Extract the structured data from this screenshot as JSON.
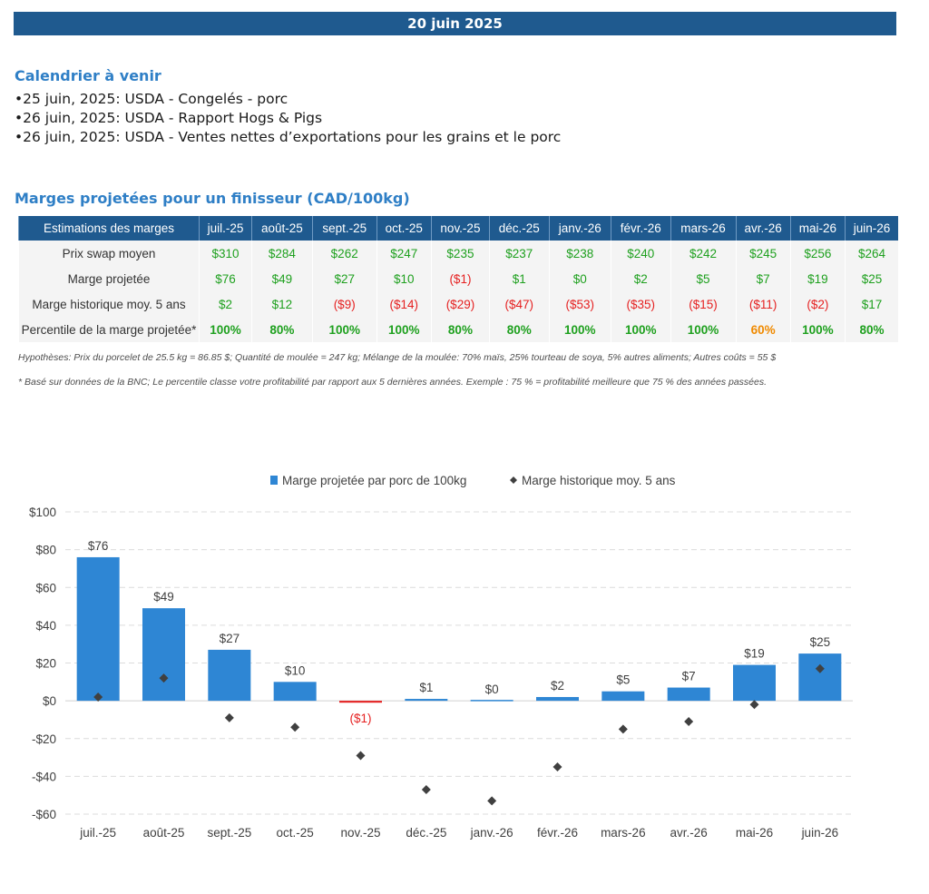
{
  "header": {
    "date": "20 juin 2025"
  },
  "calendar": {
    "title": "Calendrier à venir",
    "events": [
      "25 juin, 2025: USDA - Congelés - porc",
      "26 juin, 2025: USDA - Rapport Hogs & Pigs",
      "26 juin, 2025: USDA - Ventes nettes d’exportations pour les grains et le porc"
    ]
  },
  "margins": {
    "title": "Marges projetées pour un finisseur (CAD/100kg)",
    "corner_label": "Estimations des marges",
    "months": [
      "juil.-25",
      "août-25",
      "sept.-25",
      "oct.-25",
      "nov.-25",
      "déc.-25",
      "janv.-26",
      "févr.-26",
      "mars-26",
      "avr.-26",
      "mai-26",
      "juin-26"
    ],
    "rows": [
      {
        "label": "Prix swap moyen",
        "cells": [
          {
            "text": "$310",
            "tone": "pos"
          },
          {
            "text": "$284",
            "tone": "pos"
          },
          {
            "text": "$262",
            "tone": "pos"
          },
          {
            "text": "$247",
            "tone": "pos"
          },
          {
            "text": "$235",
            "tone": "pos"
          },
          {
            "text": "$237",
            "tone": "pos"
          },
          {
            "text": "$238",
            "tone": "pos"
          },
          {
            "text": "$240",
            "tone": "pos"
          },
          {
            "text": "$242",
            "tone": "pos"
          },
          {
            "text": "$245",
            "tone": "pos"
          },
          {
            "text": "$256",
            "tone": "pos"
          },
          {
            "text": "$264",
            "tone": "pos"
          }
        ]
      },
      {
        "label": "Marge projetée",
        "cells": [
          {
            "text": "$76",
            "tone": "pos"
          },
          {
            "text": "$49",
            "tone": "pos"
          },
          {
            "text": "$27",
            "tone": "pos"
          },
          {
            "text": "$10",
            "tone": "pos"
          },
          {
            "text": "($1)",
            "tone": "neg"
          },
          {
            "text": "$1",
            "tone": "pos"
          },
          {
            "text": "$0",
            "tone": "pos"
          },
          {
            "text": "$2",
            "tone": "pos"
          },
          {
            "text": "$5",
            "tone": "pos"
          },
          {
            "text": "$7",
            "tone": "pos"
          },
          {
            "text": "$19",
            "tone": "pos"
          },
          {
            "text": "$25",
            "tone": "pos"
          }
        ]
      },
      {
        "label": "Marge historique moy. 5 ans",
        "cells": [
          {
            "text": "$2",
            "tone": "pos"
          },
          {
            "text": "$12",
            "tone": "pos"
          },
          {
            "text": "($9)",
            "tone": "neg"
          },
          {
            "text": "($14)",
            "tone": "neg"
          },
          {
            "text": "($29)",
            "tone": "neg"
          },
          {
            "text": "($47)",
            "tone": "neg"
          },
          {
            "text": "($53)",
            "tone": "neg"
          },
          {
            "text": "($35)",
            "tone": "neg"
          },
          {
            "text": "($15)",
            "tone": "neg"
          },
          {
            "text": "($11)",
            "tone": "neg"
          },
          {
            "text": "($2)",
            "tone": "neg"
          },
          {
            "text": "$17",
            "tone": "pos"
          }
        ]
      },
      {
        "label": "Percentile de la marge projetée*",
        "bold": true,
        "cells": [
          {
            "text": "100%",
            "tone": "pos"
          },
          {
            "text": "80%",
            "tone": "pos"
          },
          {
            "text": "100%",
            "tone": "pos"
          },
          {
            "text": "100%",
            "tone": "pos"
          },
          {
            "text": "80%",
            "tone": "pos"
          },
          {
            "text": "80%",
            "tone": "pos"
          },
          {
            "text": "100%",
            "tone": "pos"
          },
          {
            "text": "100%",
            "tone": "pos"
          },
          {
            "text": "100%",
            "tone": "pos"
          },
          {
            "text": "60%",
            "tone": "orange"
          },
          {
            "text": "100%",
            "tone": "pos"
          },
          {
            "text": "80%",
            "tone": "pos"
          }
        ]
      }
    ],
    "hypotheses": "Hypothèses: Prix du porcelet de 25.5 kg = 86.85 $; Quantité de moulée = 247 kg; Mélange de la moulée: 70% maïs, 25% tourteau de soya, 5% autres aliments; Autres coûts = 55 $",
    "footnote": "* Basé sur données de la BNC; Le percentile classe votre profitabilité par rapport aux 5 dernières années. Exemple : 75 % = profitabilité meilleure que 75 % des années passées."
  },
  "colors": {
    "header_blue": "#1f5a8f",
    "title_blue": "#2f7fc6",
    "bar_blue": "#2e86d4",
    "negative_red": "#e52020",
    "positive_green": "#1ea01e",
    "orange": "#f08a00",
    "marker": "#404040"
  },
  "chart_data": {
    "type": "bar",
    "categories": [
      "juil.-25",
      "août-25",
      "sept.-25",
      "oct.-25",
      "nov.-25",
      "déc.-25",
      "janv.-26",
      "févr.-26",
      "mars-26",
      "avr.-26",
      "mai-26",
      "juin-26"
    ],
    "series": [
      {
        "name": "Marge projetée par porc de 100kg",
        "type": "bar",
        "values": [
          76,
          49,
          27,
          10,
          -1,
          1,
          0,
          2,
          5,
          7,
          19,
          25
        ],
        "labels": [
          "$76",
          "$49",
          "$27",
          "$10",
          "($1)",
          "$1",
          "$0",
          "$2",
          "$5",
          "$7",
          "$19",
          "$25"
        ]
      },
      {
        "name": "Marge historique moy. 5 ans",
        "type": "scatter",
        "values": [
          2,
          12,
          -9,
          -14,
          -29,
          -47,
          -53,
          -35,
          -15,
          -11,
          -2,
          17
        ]
      }
    ],
    "ylim": [
      -60,
      100
    ],
    "yticks": [
      100,
      80,
      60,
      40,
      20,
      0,
      -20,
      -40,
      -60
    ],
    "ytick_labels": [
      "$100",
      "$80",
      "$60",
      "$40",
      "$20",
      "$0",
      "-$20",
      "-$40",
      "-$60"
    ],
    "grid": true,
    "legend": "top"
  }
}
